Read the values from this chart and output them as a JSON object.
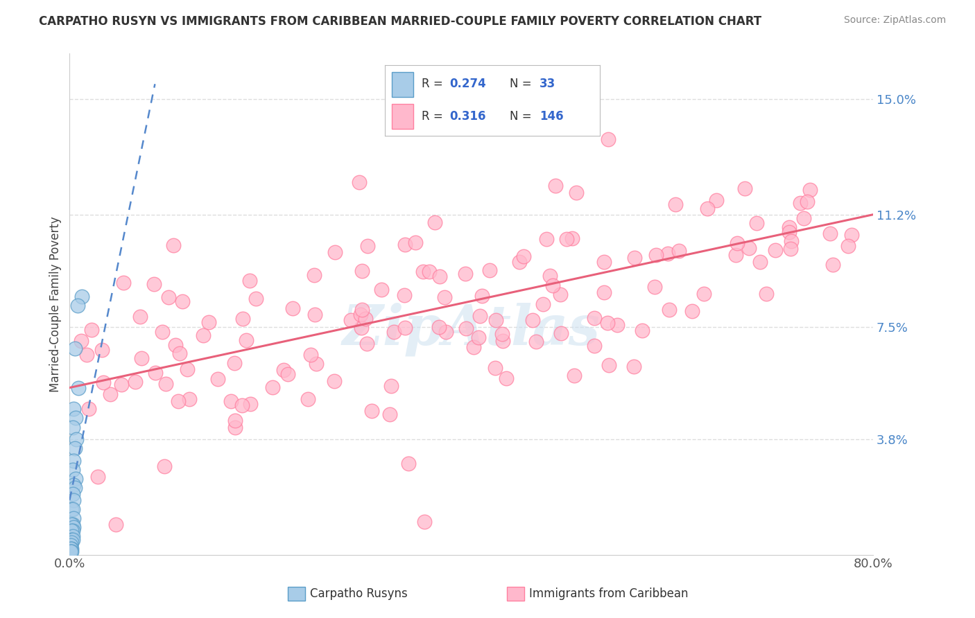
{
  "title": "CARPATHO RUSYN VS IMMIGRANTS FROM CARIBBEAN MARRIED-COUPLE FAMILY POVERTY CORRELATION CHART",
  "source": "Source: ZipAtlas.com",
  "ylabel": "Married-Couple Family Poverty",
  "xlim": [
    0.0,
    80.0
  ],
  "ylim": [
    0.0,
    16.5
  ],
  "ytick_positions": [
    3.8,
    7.5,
    11.2,
    15.0
  ],
  "ytick_labels": [
    "3.8%",
    "7.5%",
    "11.2%",
    "15.0%"
  ],
  "xtick_positions": [
    0.0,
    80.0
  ],
  "xtick_labels": [
    "0.0%",
    "80.0%"
  ],
  "legend1_label": "Carpatho Rusyns",
  "legend2_label": "Immigrants from Caribbean",
  "R1": 0.274,
  "N1": 33,
  "R2": 0.316,
  "N2": 146,
  "color_blue_fill": "#a8cce8",
  "color_blue_edge": "#5a9dc8",
  "color_pink_fill": "#ffb8cc",
  "color_pink_edge": "#ff80a0",
  "color_blue_line": "#5588cc",
  "color_pink_line": "#e8607a",
  "watermark_color": "#cce0f0",
  "background_color": "#ffffff",
  "grid_color": "#dddddd",
  "blue_trend_x0": 0.0,
  "blue_trend_y0": 1.8,
  "blue_trend_x1": 8.5,
  "blue_trend_y1": 15.5,
  "pink_trend_x0": 0.0,
  "pink_trend_y0": 5.5,
  "pink_trend_x1": 80.0,
  "pink_trend_y1": 11.2
}
